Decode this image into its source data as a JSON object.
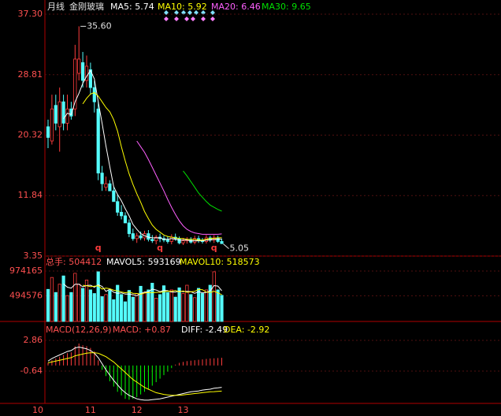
{
  "chart_data": [
    {
      "type": "candlestick",
      "period": "月线",
      "name": "金刚玻璃",
      "open": [
        21.5,
        19.5,
        24.5,
        21.5,
        25,
        22,
        24,
        24,
        29,
        30.5,
        28,
        29.5,
        27,
        24,
        15,
        13,
        13.5,
        12.5,
        11,
        9.5,
        9,
        8,
        6.5,
        5.8,
        6.2,
        5.9,
        6.5,
        5.7,
        5.5,
        6,
        5.8,
        5.6,
        5.4,
        6,
        5.8,
        5.2,
        5.5,
        5.6,
        5.3,
        5.8,
        5.5,
        5.4,
        5.9,
        5.6,
        5.9,
        5.4
      ],
      "high": [
        22.5,
        26,
        26,
        27,
        26,
        26,
        25,
        33,
        35.6,
        32,
        31.5,
        30.5,
        28,
        25,
        16,
        14.5,
        14,
        13,
        12,
        10.5,
        9.5,
        8.5,
        7.2,
        6.6,
        6.8,
        6.9,
        7,
        6.3,
        6.3,
        6.5,
        6.2,
        6.1,
        6.4,
        6.5,
        6.1,
        5.9,
        6,
        6,
        6.2,
        6.2,
        5.9,
        6.3,
        6.2,
        6.3,
        6.2,
        5.8
      ],
      "low": [
        18.5,
        19,
        21,
        18,
        21,
        21,
        22.5,
        23,
        28,
        27,
        27,
        26,
        23.5,
        14,
        12.5,
        12.5,
        12.8,
        11,
        9,
        8.5,
        8,
        6,
        5.5,
        5.2,
        5.6,
        5.5,
        5.4,
        5.2,
        5,
        5.3,
        5.3,
        5.1,
        5,
        5.5,
        5,
        4.9,
        5.1,
        5.1,
        5,
        5.2,
        5.1,
        5.1,
        5.3,
        5.2,
        5.2,
        5.05
      ],
      "close": [
        20,
        24,
        22,
        25,
        22,
        24,
        23,
        31,
        31,
        28,
        30,
        27,
        25,
        15,
        13.5,
        13.5,
        12.5,
        11,
        9.5,
        9,
        8,
        6.5,
        5.8,
        6.2,
        5.9,
        6.5,
        5.7,
        5.5,
        6,
        5.8,
        5.6,
        5.4,
        6,
        5.8,
        5.2,
        5.5,
        5.6,
        5.3,
        5.8,
        5.5,
        5.4,
        5.9,
        5.6,
        5.9,
        5.4,
        5.1
      ],
      "color_up": "#ff3c3c",
      "color_down": "#54fcfc",
      "ylim": [
        3.35,
        37.3
      ],
      "yticks": [
        {
          "value": 37.3,
          "label": "37.30"
        },
        28.81,
        20.32,
        11.84,
        3.35
      ],
      "series": [
        {
          "name": "MA5: 5.74",
          "color": "#ffffff",
          "values": [
            null,
            null,
            null,
            null,
            22.6,
            23.4,
            23.2,
            25,
            26.2,
            27.6,
            28.6,
            29.4,
            28.2,
            25,
            22,
            18.8,
            15.9,
            13.1,
            12,
            11.1,
            10,
            9,
            7.8,
            7.1,
            6.5,
            6.2,
            6,
            5.9,
            5.9,
            5.9,
            5.7,
            5.7,
            5.8,
            5.7,
            5.6,
            5.6,
            5.6,
            5.5,
            5.5,
            5.5,
            5.5,
            5.6,
            5.6,
            5.7,
            5.7,
            5.74
          ]
        },
        {
          "name": "MA10: 5.92",
          "color": "#ffff00",
          "values": [
            null,
            null,
            null,
            null,
            null,
            null,
            null,
            null,
            null,
            24.7,
            25.5,
            26.1,
            26.3,
            25.8,
            25,
            24.2,
            23.6,
            22.5,
            20.9,
            18.7,
            16.7,
            14.9,
            13.4,
            12.1,
            10.9,
            9.6,
            8.6,
            7.7,
            7.1,
            6.7,
            6.3,
            6.1,
            6,
            5.9,
            5.8,
            5.8,
            5.7,
            5.7,
            5.7,
            5.6,
            5.6,
            5.7,
            5.8,
            5.85,
            5.9,
            5.92
          ]
        },
        {
          "name": "MA20: 6.46",
          "color": "#ff60ff",
          "values": [
            null,
            null,
            null,
            null,
            null,
            null,
            null,
            null,
            null,
            null,
            null,
            null,
            null,
            null,
            null,
            null,
            null,
            null,
            null,
            null,
            null,
            null,
            null,
            19.5,
            18.7,
            17.9,
            16.9,
            15.8,
            14.7,
            13.6,
            12.5,
            11.3,
            10.2,
            9.2,
            8.3,
            7.6,
            7.1,
            6.8,
            6.6,
            6.5,
            6.4,
            6.4,
            6.4,
            6.4,
            6.4,
            6.46
          ]
        },
        {
          "name": "MA30: 9.65",
          "color": "#00e000",
          "values": [
            null,
            null,
            null,
            null,
            null,
            null,
            null,
            null,
            null,
            null,
            null,
            null,
            null,
            null,
            null,
            null,
            null,
            null,
            null,
            null,
            null,
            null,
            null,
            null,
            null,
            null,
            null,
            null,
            null,
            null,
            null,
            null,
            null,
            null,
            null,
            15.3,
            14.6,
            13.8,
            13,
            12.2,
            11.6,
            11,
            10.5,
            10.2,
            9.9,
            9.65
          ]
        }
      ],
      "annotations": [
        {
          "index": 8,
          "value": 35.6,
          "label": "35.60"
        },
        {
          "index": 45,
          "value": 5.05
        }
      ],
      "markers": [
        {
          "index": 13,
          "label": "q"
        },
        {
          "index": 29,
          "label": "q"
        },
        {
          "index": 43,
          "label": "q"
        }
      ]
    },
    {
      "type": "bar",
      "title": "总手: 504412",
      "values": [
        620000,
        850000,
        560000,
        720000,
        880000,
        500000,
        560000,
        930000,
        720000,
        640000,
        800000,
        610000,
        540000,
        960000,
        480000,
        520000,
        600000,
        420000,
        700000,
        520000,
        380000,
        600000,
        470000,
        540000,
        680000,
        560000,
        610000,
        740000,
        450000,
        520000,
        690000,
        560000,
        610000,
        470000,
        650000,
        540000,
        700000,
        520000,
        460000,
        640000,
        540000,
        610000,
        700000,
        960000,
        610000,
        504412
      ],
      "ylim": [
        0,
        1065500
      ],
      "yticks": [
        974165,
        494576
      ],
      "series": [
        {
          "name": "MAVOL5: 593169",
          "color": "#ffffff",
          "values": [
            null,
            null,
            null,
            null,
            726000,
            662000,
            644000,
            718000,
            718000,
            670000,
            694000,
            700000,
            662000,
            710000,
            678000,
            582000,
            622000,
            564000,
            544000,
            552000,
            528000,
            528000,
            518000,
            498000,
            538000,
            570000,
            572000,
            626000,
            608000,
            576000,
            602000,
            594000,
            566000,
            566000,
            588000,
            574000,
            582000,
            574000,
            544000,
            576000,
            552000,
            562000,
            590000,
            692000,
            684000,
            593169
          ]
        },
        {
          "name": "MAVOL10: 518573",
          "color": "#ffff00",
          "values": [
            null,
            null,
            null,
            null,
            null,
            null,
            null,
            null,
            null,
            698000,
            690000,
            672000,
            680000,
            690000,
            626000,
            646000,
            632000,
            603000,
            590000,
            570000,
            554000,
            570000,
            545000,
            541000,
            525000,
            550000,
            560000,
            556000,
            562000,
            563000,
            573000,
            586000,
            583000,
            596000,
            571000,
            589000,
            563000,
            572000,
            582000,
            618000,
            614000,
            568000,
            560000,
            583000,
            552000,
            518573
          ]
        }
      ]
    },
    {
      "type": "macd",
      "title": "MACD(12,26,9)",
      "macd_label": "MACD: +0.87",
      "values": [
        0.3,
        0.6,
        0.8,
        1.0,
        1.2,
        1.4,
        1.5,
        2.2,
        2.5,
        2.3,
        2.2,
        2.0,
        1.6,
        0.6,
        -0.5,
        -1.2,
        -1.8,
        -2.4,
        -3.0,
        -3.4,
        -3.8,
        -3.9,
        -3.8,
        -3.6,
        -3.3,
        -3.0,
        -2.7,
        -2.3,
        -1.9,
        -1.5,
        -1.1,
        -0.7,
        -0.3,
        0.1,
        0.3,
        0.4,
        0.5,
        0.55,
        0.6,
        0.65,
        0.7,
        0.75,
        0.8,
        0.82,
        0.85,
        0.87
      ],
      "color_up": "#ff3c3c",
      "color_down": "#00ff00",
      "ylim": [
        -4.32,
        3.49
      ],
      "yticks": [
        2.86,
        -0.64
      ],
      "series": [
        {
          "name": "DIFF: -2.49",
          "color": "#ffffff",
          "values": [
            0.5,
            0.8,
            1.0,
            1.2,
            1.4,
            1.6,
            1.7,
            2.0,
            2.1,
            2.0,
            1.9,
            1.7,
            1.4,
            0.9,
            0.2,
            -0.5,
            -1.1,
            -1.7,
            -2.2,
            -2.7,
            -3.1,
            -3.4,
            -3.6,
            -3.8,
            -3.9,
            -3.95,
            -3.95,
            -3.9,
            -3.85,
            -3.8,
            -3.7,
            -3.6,
            -3.5,
            -3.4,
            -3.3,
            -3.2,
            -3.1,
            -3.0,
            -2.95,
            -2.9,
            -2.8,
            -2.75,
            -2.7,
            -2.6,
            -2.55,
            -2.49
          ]
        },
        {
          "name": "DEA: -2.92",
          "color": "#ffff00",
          "values": [
            0.3,
            0.4,
            0.5,
            0.6,
            0.7,
            0.8,
            0.9,
            1.1,
            1.2,
            1.3,
            1.4,
            1.45,
            1.45,
            1.4,
            1.2,
            1.0,
            0.7,
            0.4,
            0.0,
            -0.4,
            -0.8,
            -1.2,
            -1.6,
            -1.9,
            -2.2,
            -2.5,
            -2.7,
            -2.9,
            -3.1,
            -3.2,
            -3.3,
            -3.35,
            -3.4,
            -3.4,
            -3.4,
            -3.35,
            -3.3,
            -3.25,
            -3.2,
            -3.15,
            -3.1,
            -3.05,
            -3.0,
            -2.98,
            -2.95,
            -2.92
          ]
        }
      ],
      "categories": [
        "10",
        null,
        null,
        null,
        null,
        null,
        null,
        null,
        null,
        null,
        null,
        "11",
        null,
        null,
        null,
        null,
        null,
        null,
        null,
        null,
        null,
        null,
        null,
        "12",
        null,
        null,
        null,
        null,
        null,
        null,
        null,
        null,
        null,
        null,
        null,
        "13",
        null,
        null,
        null,
        null,
        null,
        null,
        null,
        null,
        null,
        null
      ]
    }
  ]
}
